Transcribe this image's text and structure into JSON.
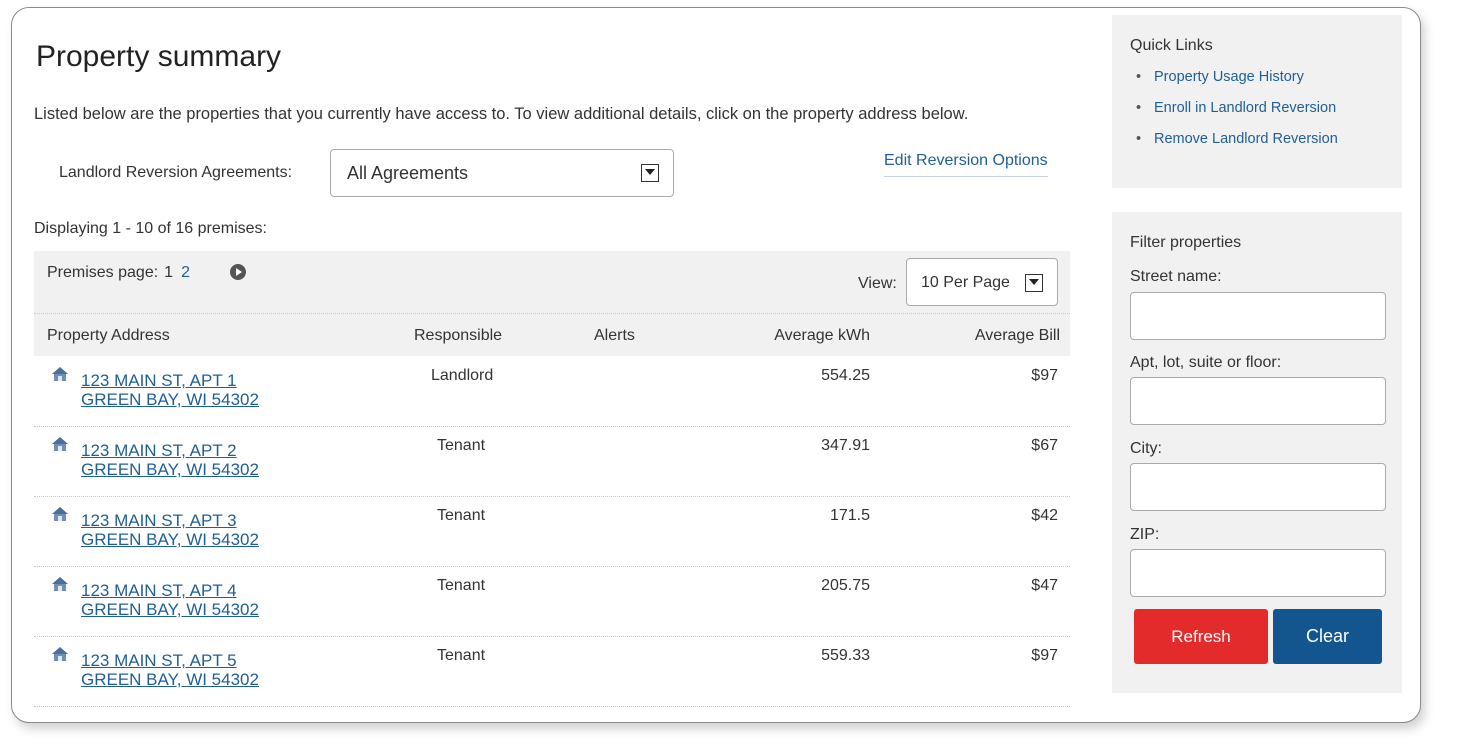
{
  "page": {
    "title": "Property summary",
    "intro": "Listed below are the properties that you currently have access to. To view additional details, click on the property address below."
  },
  "agreements": {
    "label": "Landlord Reversion Agreements:",
    "selected": "All Agreements",
    "edit_link": "Edit Reversion Options"
  },
  "displaying": "Displaying 1 - 10 of 16 premises:",
  "pager": {
    "label": "Premises page:",
    "current": "1",
    "next_page": "2",
    "view_label": "View:",
    "per_page": "10 Per Page"
  },
  "table": {
    "headers": {
      "address": "Property Address",
      "responsible": "Responsible",
      "alerts": "Alerts",
      "kwh": "Average kWh",
      "bill": "Average Bill"
    },
    "rows": [
      {
        "line1": "123 MAIN ST, APT 1",
        "line2": "GREEN BAY, WI 54302",
        "responsible": "Landlord",
        "alerts": "",
        "kwh": "554.25",
        "bill": "$97"
      },
      {
        "line1": "123 MAIN ST, APT 2",
        "line2": "GREEN BAY, WI 54302",
        "responsible": "Tenant",
        "alerts": "",
        "kwh": "347.91",
        "bill": "$67"
      },
      {
        "line1": "123 MAIN ST, APT 3",
        "line2": "GREEN BAY, WI 54302",
        "responsible": "Tenant",
        "alerts": "",
        "kwh": "171.5",
        "bill": "$42"
      },
      {
        "line1": "123 MAIN ST, APT 4",
        "line2": "GREEN BAY, WI 54302",
        "responsible": "Tenant",
        "alerts": "",
        "kwh": "205.75",
        "bill": "$47"
      },
      {
        "line1": "123 MAIN ST, APT 5",
        "line2": "GREEN BAY, WI 54302",
        "responsible": "Tenant",
        "alerts": "",
        "kwh": "559.33",
        "bill": "$97"
      }
    ]
  },
  "quick_links": {
    "title": "Quick Links",
    "items": [
      "Property Usage History",
      "Enroll in Landlord Reversion",
      "Remove Landlord Reversion"
    ]
  },
  "filter": {
    "title": "Filter properties",
    "street_label": "Street name:",
    "apt_label": "Apt, lot, suite or floor:",
    "city_label": "City:",
    "zip_label": "ZIP:",
    "street_value": "",
    "apt_value": "",
    "city_value": "",
    "zip_value": "",
    "refresh_label": "Refresh",
    "clear_label": "Clear"
  },
  "colors": {
    "link": "#1f5f98",
    "refresh": "#e32b2b",
    "clear": "#13558f",
    "panel_bg": "#f1f1f1"
  },
  "icons": {
    "house": "house-icon",
    "next": "next-page-icon",
    "dropdown": "dropdown-arrow-icon"
  }
}
